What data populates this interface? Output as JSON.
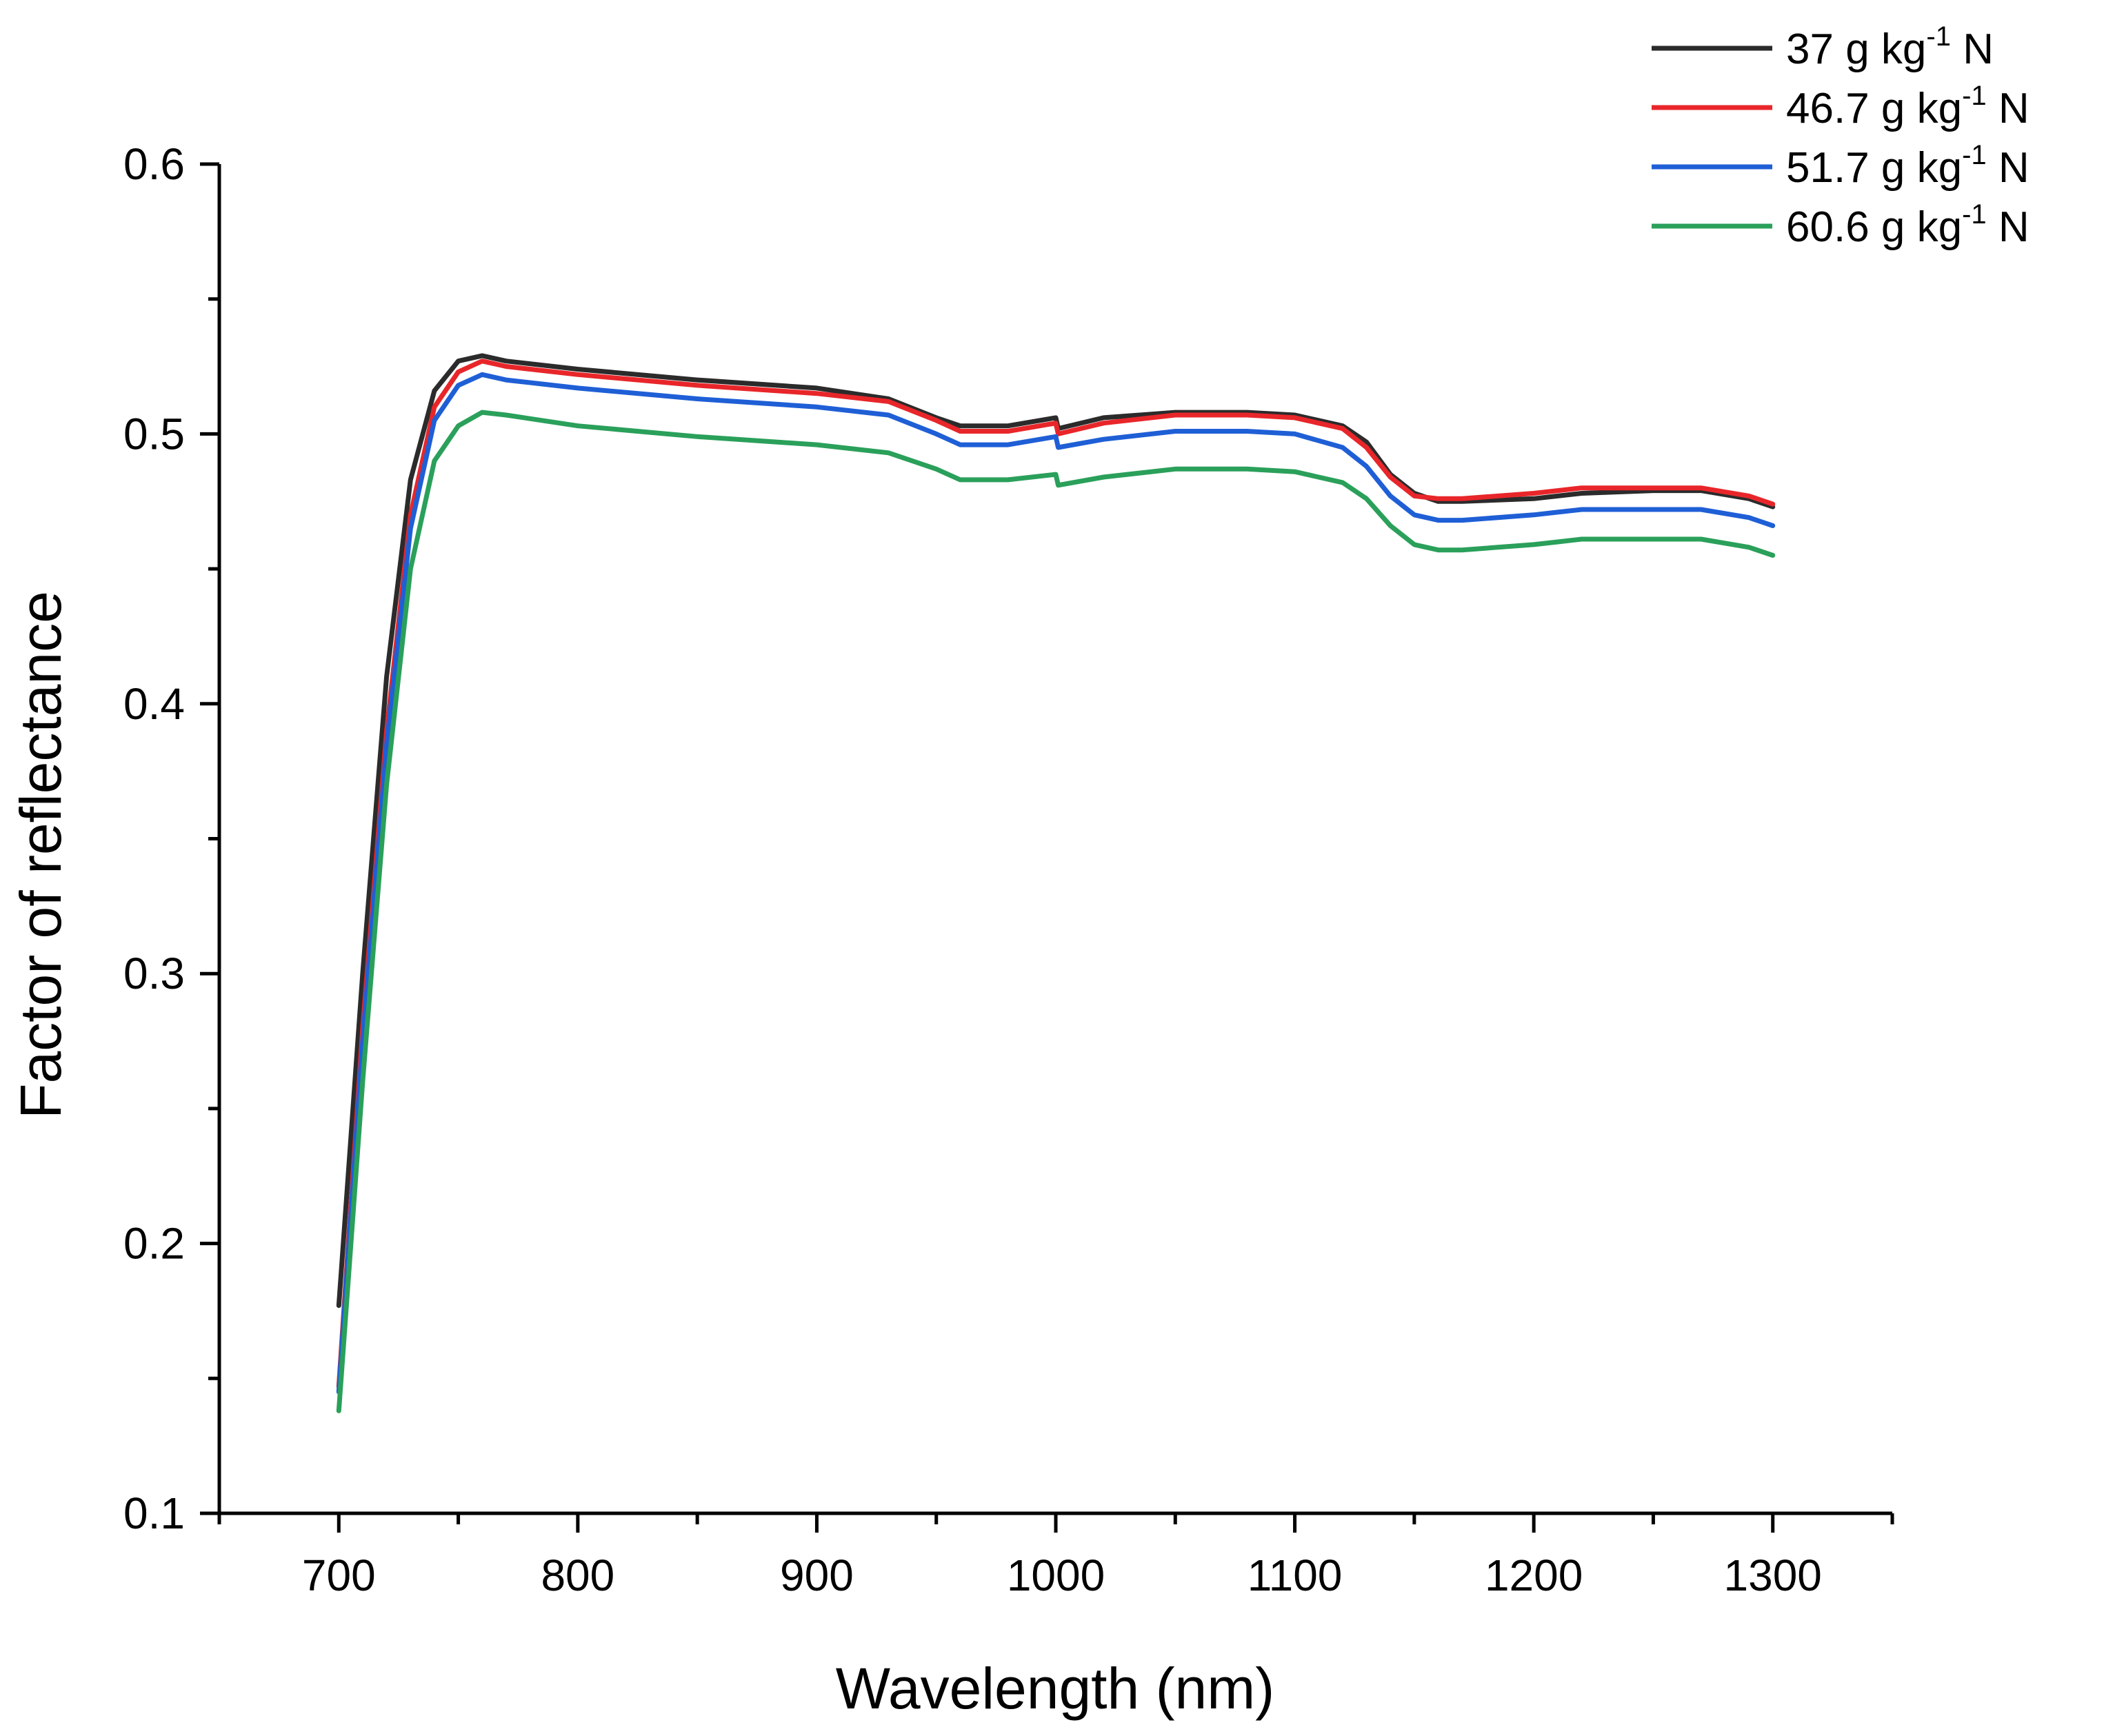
{
  "chart_data": {
    "type": "line",
    "title": "",
    "xlabel": "Wavelength (nm)",
    "ylabel": "Factor of reflectance",
    "xlim": [
      650,
      1350
    ],
    "ylim": [
      0.1,
      0.6
    ],
    "xticks": [
      "700",
      "800",
      "900",
      "1000",
      "1100",
      "1200",
      "1300"
    ],
    "yticks": [
      "0.1",
      "0.2",
      "0.3",
      "0.4",
      "0.5",
      "0.6"
    ],
    "grid": false,
    "legend_position": "top-right",
    "series": [
      {
        "name": "37 g kg-1 N",
        "label_main": "37 g kg",
        "label_sup": "-1",
        "label_tail": " N",
        "color": "#2b2b2b",
        "x": [
          700,
          710,
          720,
          730,
          740,
          750,
          760,
          770,
          800,
          850,
          900,
          930,
          950,
          960,
          980,
          1000,
          1001,
          1020,
          1050,
          1080,
          1100,
          1120,
          1130,
          1140,
          1150,
          1160,
          1170,
          1200,
          1210,
          1220,
          1250,
          1270,
          1290,
          1300
        ],
        "values": [
          0.177,
          0.3,
          0.41,
          0.483,
          0.516,
          0.527,
          0.529,
          0.527,
          0.524,
          0.52,
          0.517,
          0.513,
          0.506,
          0.503,
          0.503,
          0.506,
          0.502,
          0.506,
          0.508,
          0.508,
          0.507,
          0.503,
          0.497,
          0.485,
          0.478,
          0.475,
          0.475,
          0.476,
          0.477,
          0.478,
          0.479,
          0.479,
          0.476,
          0.473
        ]
      },
      {
        "name": "46.7 g kg-1 N",
        "label_main": "46.7 g kg",
        "label_sup": "-1",
        "label_tail": " N",
        "color": "#e8262a",
        "x": [
          700,
          710,
          720,
          730,
          740,
          750,
          760,
          770,
          800,
          850,
          900,
          930,
          950,
          960,
          980,
          1000,
          1001,
          1020,
          1050,
          1080,
          1100,
          1120,
          1130,
          1140,
          1150,
          1160,
          1170,
          1200,
          1210,
          1220,
          1250,
          1270,
          1290,
          1300
        ],
        "values": [
          0.147,
          0.28,
          0.39,
          0.47,
          0.51,
          0.523,
          0.527,
          0.525,
          0.522,
          0.518,
          0.515,
          0.512,
          0.505,
          0.501,
          0.501,
          0.504,
          0.5,
          0.504,
          0.507,
          0.507,
          0.506,
          0.502,
          0.495,
          0.484,
          0.477,
          0.476,
          0.476,
          0.478,
          0.479,
          0.48,
          0.48,
          0.48,
          0.477,
          0.474
        ]
      },
      {
        "name": "51.7 g kg-1 N",
        "label_main": "51.7 g kg",
        "label_sup": "-1",
        "label_tail": " N",
        "color": "#1f5fd6",
        "x": [
          700,
          710,
          720,
          730,
          740,
          750,
          760,
          770,
          800,
          850,
          900,
          930,
          950,
          960,
          980,
          1000,
          1001,
          1020,
          1050,
          1080,
          1100,
          1120,
          1130,
          1140,
          1150,
          1160,
          1170,
          1200,
          1210,
          1220,
          1250,
          1270,
          1290,
          1300
        ],
        "values": [
          0.145,
          0.275,
          0.385,
          0.465,
          0.505,
          0.518,
          0.522,
          0.52,
          0.517,
          0.513,
          0.51,
          0.507,
          0.5,
          0.496,
          0.496,
          0.499,
          0.495,
          0.498,
          0.501,
          0.501,
          0.5,
          0.495,
          0.488,
          0.477,
          0.47,
          0.468,
          0.468,
          0.47,
          0.471,
          0.472,
          0.472,
          0.472,
          0.469,
          0.466
        ]
      },
      {
        "name": "60.6 g kg-1 N",
        "label_main": "60.6 g kg",
        "label_sup": "-1",
        "label_tail": " N",
        "color": "#2aa05a",
        "x": [
          700,
          710,
          720,
          730,
          740,
          750,
          760,
          770,
          800,
          850,
          900,
          930,
          950,
          960,
          980,
          1000,
          1001,
          1020,
          1050,
          1080,
          1100,
          1120,
          1130,
          1140,
          1150,
          1160,
          1170,
          1200,
          1210,
          1220,
          1250,
          1270,
          1290,
          1300
        ],
        "values": [
          0.138,
          0.26,
          0.37,
          0.45,
          0.49,
          0.503,
          0.508,
          0.507,
          0.503,
          0.499,
          0.496,
          0.493,
          0.487,
          0.483,
          0.483,
          0.485,
          0.481,
          0.484,
          0.487,
          0.487,
          0.486,
          0.482,
          0.476,
          0.466,
          0.459,
          0.457,
          0.457,
          0.459,
          0.46,
          0.461,
          0.461,
          0.461,
          0.458,
          0.455
        ]
      }
    ]
  }
}
